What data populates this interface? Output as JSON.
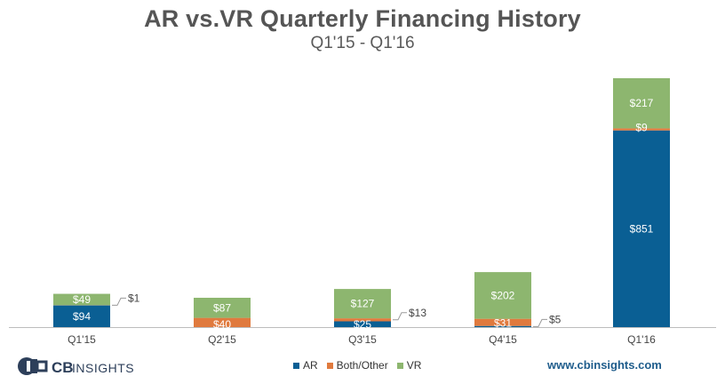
{
  "title": "AR vs.VR Quarterly Financing History",
  "subtitle": "Q1'15 - Q1'16",
  "chart_data": {
    "type": "bar",
    "stacked": true,
    "title": "AR vs.VR Quarterly Financing History",
    "subtitle": "Q1'15 - Q1'16",
    "categories": [
      "Q1'15",
      "Q2'15",
      "Q3'15",
      "Q4'15",
      "Q1'16"
    ],
    "series": [
      {
        "name": "AR",
        "color": "#0a5f94",
        "values": [
          94,
          0,
          25,
          5,
          851
        ],
        "labels": [
          "$94",
          "",
          "$25",
          "$5",
          "$851"
        ]
      },
      {
        "name": "Both/Other",
        "color": "#e07a3e",
        "values": [
          1,
          40,
          13,
          31,
          9
        ],
        "labels": [
          "$1",
          "$40",
          "$13",
          "$31",
          "$9"
        ]
      },
      {
        "name": "VR",
        "color": "#8db66f",
        "values": [
          49,
          87,
          127,
          202,
          217
        ],
        "labels": [
          "$49",
          "$87",
          "$127",
          "$202",
          "$217"
        ]
      }
    ],
    "callouts": [
      {
        "category_index": 0,
        "series_index": 1,
        "label": "$1"
      },
      {
        "category_index": 2,
        "series_index": 1,
        "label": "$13"
      },
      {
        "category_index": 3,
        "series_index": 0,
        "label": "$5"
      }
    ],
    "ylim": [
      0,
      1100
    ],
    "grid": false,
    "legend": "bottom-center"
  },
  "footer": {
    "logo_cb": "CB",
    "logo_insights": "INSIGHTS",
    "website": "www.cbinsights.com"
  }
}
